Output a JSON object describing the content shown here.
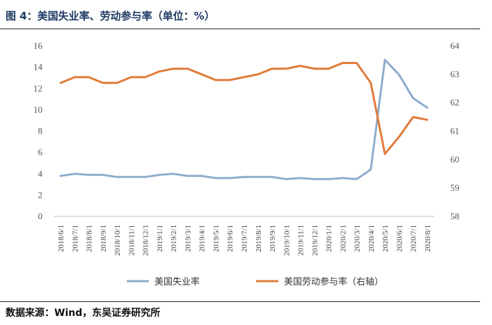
{
  "figure": {
    "title": "图 4：美国失业率、劳动参与率（单位：%）",
    "source": "数据来源：Wind，东吴证券研究所"
  },
  "chart_data": {
    "type": "line",
    "categories": [
      "2018/6/1",
      "2018/7/1",
      "2018/8/1",
      "2018/9/1",
      "2018/10/1",
      "2018/11/1",
      "2018/12/1",
      "2019/1/1",
      "2019/2/1",
      "2019/3/1",
      "2019/4/1",
      "2019/5/1",
      "2019/6/1",
      "2019/7/1",
      "2019/8/1",
      "2019/9/1",
      "2019/10/1",
      "2019/11/1",
      "2019/12/1",
      "2020/1/1",
      "2020/2/1",
      "2020/3/1",
      "2020/4/1",
      "2020/5/1",
      "2020/6/1",
      "2020/7/1",
      "2020/8/1"
    ],
    "series": [
      {
        "name": "美国失业率",
        "axis": "left",
        "color": "#8eaccd",
        "values": [
          3.8,
          4.0,
          3.9,
          3.9,
          3.7,
          3.7,
          3.7,
          3.9,
          4.0,
          3.8,
          3.8,
          3.6,
          3.6,
          3.7,
          3.7,
          3.7,
          3.5,
          3.6,
          3.5,
          3.5,
          3.6,
          3.5,
          4.4,
          14.7,
          13.3,
          11.1,
          10.2
        ]
      },
      {
        "name": "美国劳动参与率（右轴）",
        "axis": "right",
        "color": "#e07b39",
        "values": [
          62.7,
          62.9,
          62.9,
          62.7,
          62.7,
          62.9,
          62.9,
          63.1,
          63.2,
          63.2,
          63.0,
          62.8,
          62.8,
          62.9,
          63.0,
          63.2,
          63.2,
          63.3,
          63.2,
          63.2,
          63.4,
          63.4,
          62.7,
          60.2,
          60.8,
          61.5,
          61.4
        ]
      }
    ],
    "y_left": {
      "min": 0,
      "max": 16,
      "step": 2,
      "ticks": [
        "0",
        "2",
        "4",
        "6",
        "8",
        "10",
        "12",
        "14",
        "16"
      ]
    },
    "y_right": {
      "min": 58,
      "max": 64,
      "step": 1,
      "ticks": [
        "58",
        "59",
        "60",
        "61",
        "62",
        "63",
        "64"
      ]
    },
    "grid": false,
    "legend_position": "bottom"
  }
}
